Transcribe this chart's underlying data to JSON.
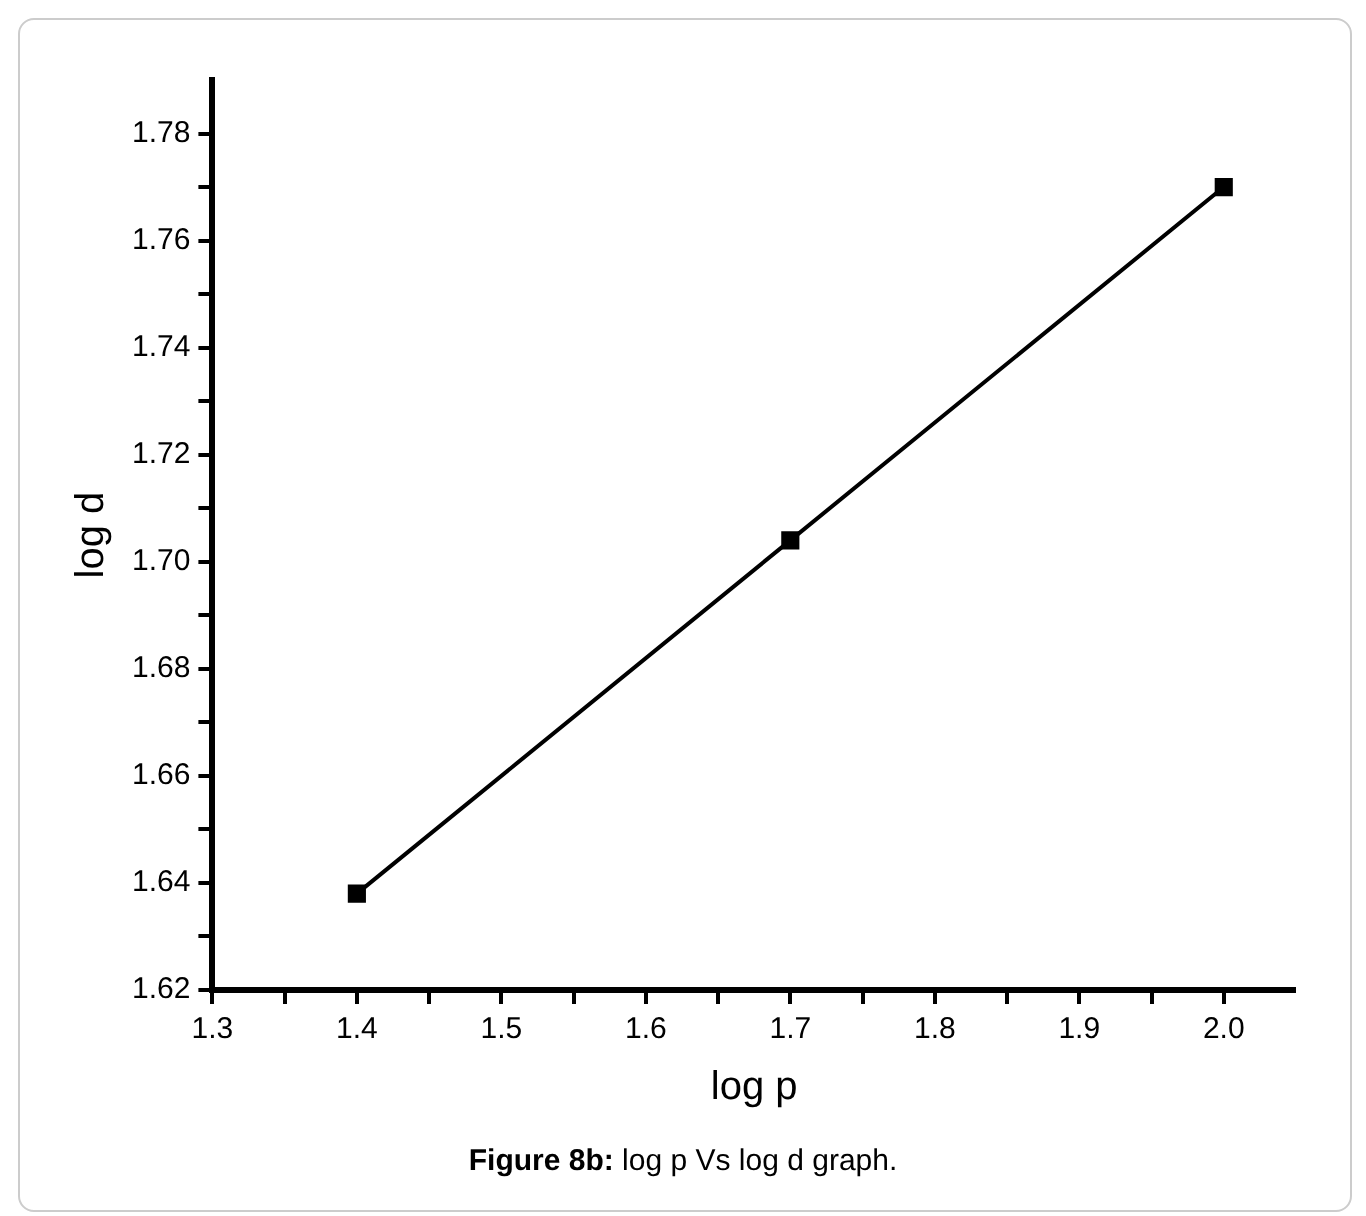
{
  "chart_data": {
    "type": "line",
    "xlabel": "log p",
    "ylabel": "log d",
    "x": [
      1.4,
      1.7,
      2.0
    ],
    "series": [
      {
        "color": "#000000",
        "values": [
          1.638,
          1.704,
          1.77
        ]
      }
    ],
    "xlim": [
      1.3,
      2.05
    ],
    "xticks": [
      1.3,
      {
        "value": 1.35,
        "label": null
      },
      1.4,
      {
        "value": 1.45,
        "label": null
      },
      1.5,
      {
        "value": 1.55,
        "label": null
      },
      1.6,
      {
        "value": 1.65,
        "label": null
      },
      1.7,
      {
        "value": 1.75,
        "label": null
      },
      1.8,
      {
        "value": 1.85,
        "label": null
      },
      1.9,
      {
        "value": 1.95,
        "label": null
      },
      {
        "value": 2.0,
        "label": "2.0"
      }
    ],
    "ylim": [
      1.62,
      1.79
    ],
    "yticks": [
      1.62,
      {
        "value": 1.63,
        "label": null
      },
      1.64,
      {
        "value": 1.65,
        "label": null
      },
      1.66,
      {
        "value": 1.67,
        "label": null
      },
      1.68,
      {
        "value": 1.69,
        "label": null
      },
      {
        "value": 1.7,
        "label": "1.70"
      },
      {
        "value": 1.71,
        "label": null
      },
      1.72,
      {
        "value": 1.73,
        "label": null
      },
      1.74,
      {
        "value": 1.75,
        "label": null
      },
      1.76,
      {
        "value": 1.77,
        "label": null
      },
      1.78
    ],
    "annotations": [
      "Figure 8b: log p Vs log d graph."
    ],
    "marker": "square",
    "line_style": "solid",
    "grid": false,
    "legend": false
  }
}
